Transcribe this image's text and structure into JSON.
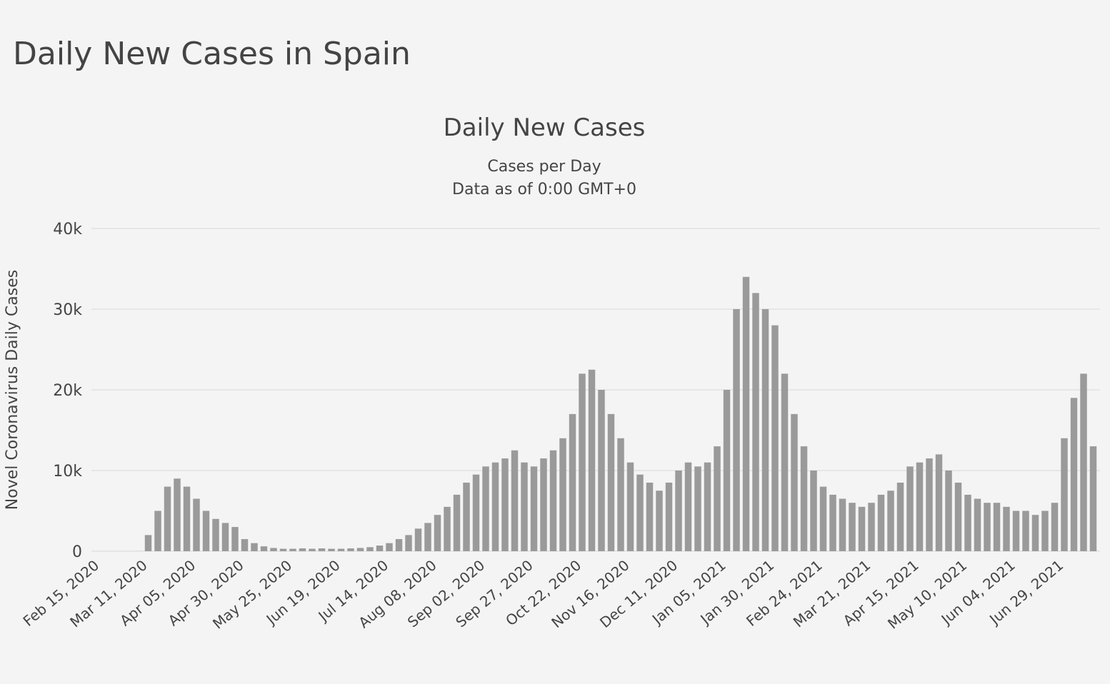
{
  "page_title": "Daily New Cases in Spain",
  "chart_data": {
    "type": "bar",
    "title": "Daily New Cases",
    "subtitle": "Cases per Day",
    "note": "Data as of 0:00 GMT+0",
    "y_label": "Novel Coronavirus Daily Cases",
    "color": "#9a9a9a",
    "grid": true,
    "ylim": [
      0,
      40000
    ],
    "yticks": [
      0,
      {
        "value": 10000,
        "label": "10k"
      },
      {
        "value": 20000,
        "label": "20k"
      },
      {
        "value": 30000,
        "label": "30k"
      },
      {
        "value": 40000,
        "label": "40k"
      }
    ],
    "categories": [
      "Feb 15, 2020",
      null,
      null,
      null,
      null,
      "Mar 11, 2020",
      null,
      null,
      null,
      null,
      "Apr 05, 2020",
      null,
      null,
      null,
      null,
      "Apr 30, 2020",
      null,
      null,
      null,
      null,
      "May 25, 2020",
      null,
      null,
      null,
      null,
      "Jun 19, 2020",
      null,
      null,
      null,
      null,
      "Jul 14, 2020",
      null,
      null,
      null,
      null,
      "Aug 08, 2020",
      null,
      null,
      null,
      null,
      "Sep 02, 2020",
      null,
      null,
      null,
      null,
      "Sep 27, 2020",
      null,
      null,
      null,
      null,
      "Oct 22, 2020",
      null,
      null,
      null,
      null,
      "Nov 16, 2020",
      null,
      null,
      null,
      null,
      "Dec 11, 2020",
      null,
      null,
      null,
      null,
      "Jan 05, 2021",
      null,
      null,
      null,
      null,
      "Jan 30, 2021",
      null,
      null,
      null,
      null,
      "Feb 24, 2021",
      null,
      null,
      null,
      null,
      "Mar 21, 2021",
      null,
      null,
      null,
      null,
      "Apr 15, 2021",
      null,
      null,
      null,
      null,
      "May 10, 2021",
      null,
      null,
      null,
      null,
      "Jun 04, 2021",
      null,
      null,
      null,
      null,
      "Jun 29, 2021",
      null,
      null,
      null
    ],
    "values": [
      0,
      0,
      0,
      0,
      10,
      2000,
      5000,
      8000,
      9000,
      8000,
      6500,
      5000,
      4000,
      3500,
      3000,
      1500,
      1000,
      600,
      400,
      300,
      300,
      350,
      300,
      350,
      300,
      300,
      350,
      400,
      500,
      700,
      1000,
      1500,
      2000,
      2800,
      3500,
      4500,
      5500,
      7000,
      8500,
      9500,
      10500,
      11000,
      11500,
      12500,
      11000,
      10500,
      11500,
      12500,
      14000,
      17000,
      22000,
      22500,
      20000,
      17000,
      14000,
      11000,
      9500,
      8500,
      7500,
      8500,
      10000,
      11000,
      10500,
      11000,
      13000,
      20000,
      30000,
      34000,
      32000,
      30000,
      28000,
      22000,
      17000,
      13000,
      10000,
      8000,
      7000,
      6500,
      6000,
      5500,
      6000,
      7000,
      7500,
      8500,
      10500,
      11000,
      11500,
      12000,
      10000,
      8500,
      7000,
      6500,
      6000,
      6000,
      5500,
      5000,
      5000,
      4500,
      5000,
      6000,
      14000,
      19000,
      22000,
      13000
    ]
  }
}
